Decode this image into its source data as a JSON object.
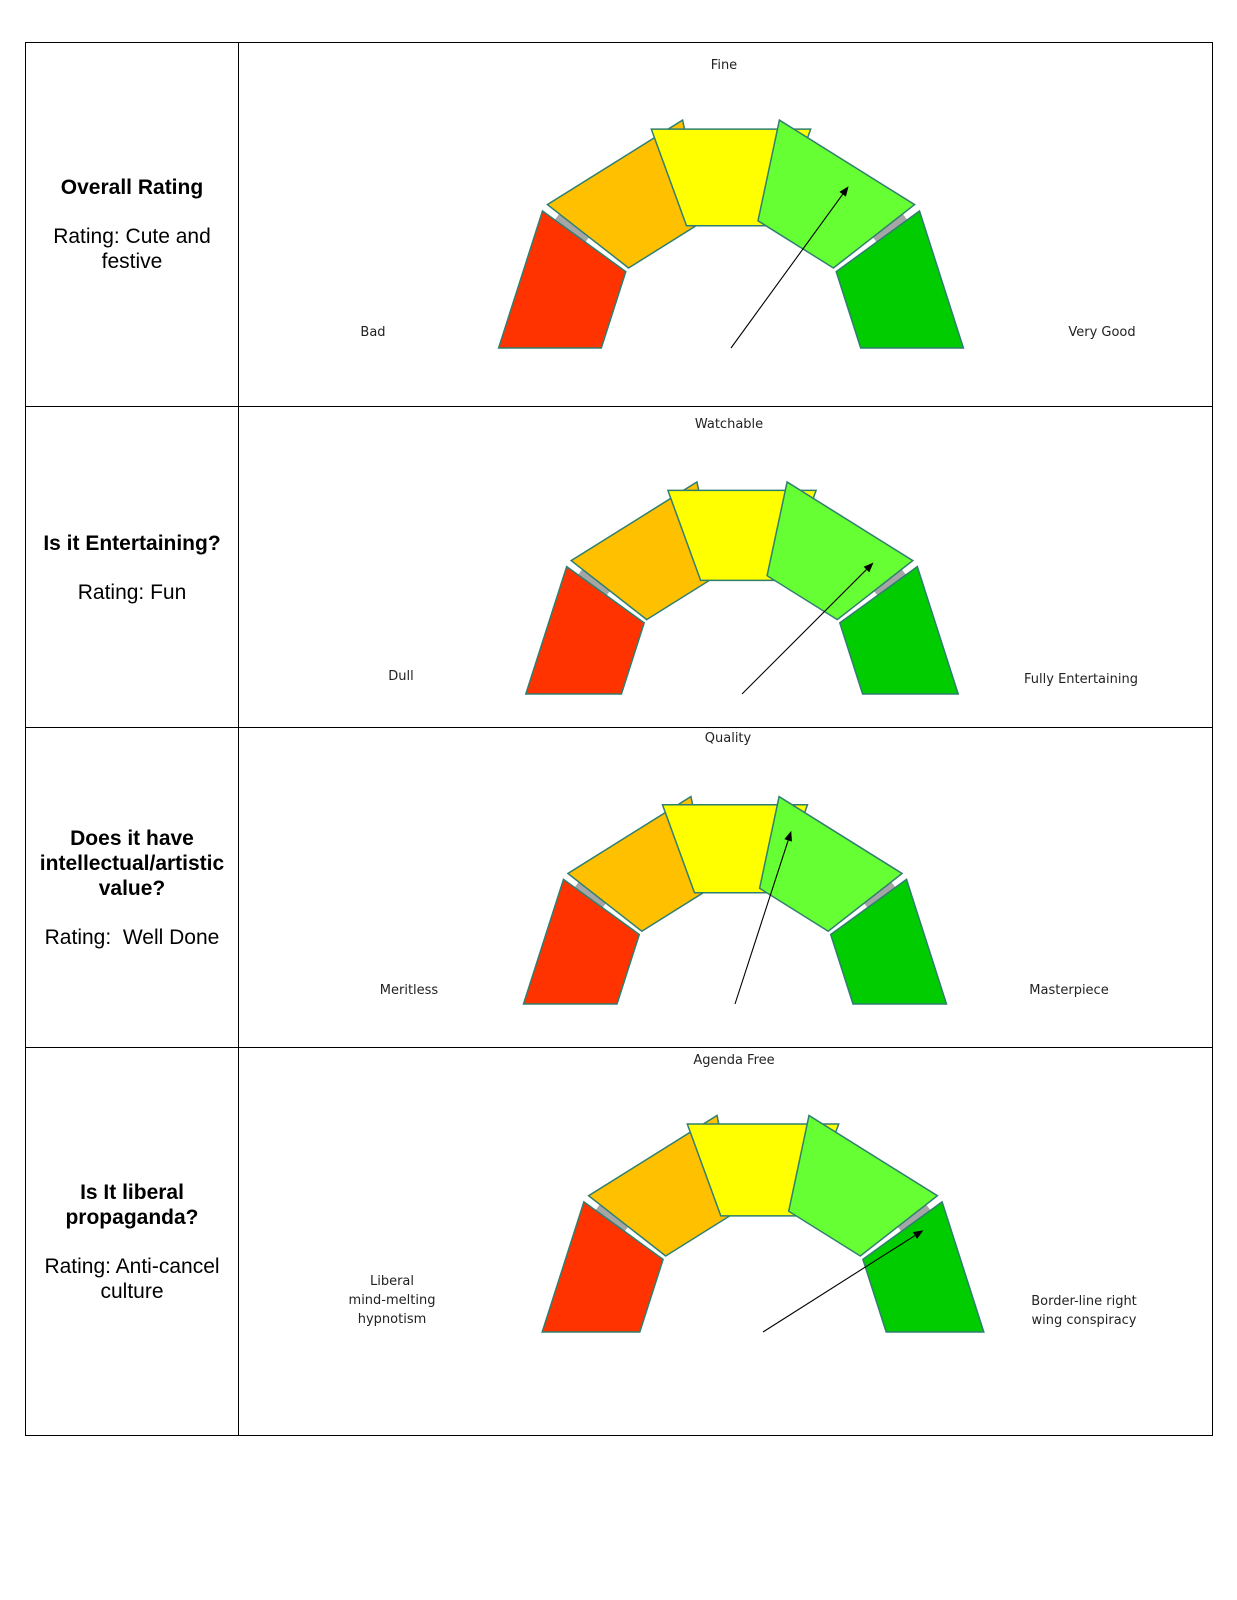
{
  "colors": {
    "segment_colors": [
      "#ff3300",
      "#ffc000",
      "#ffff00",
      "#66ff33",
      "#00cc00"
    ],
    "arc_band": "#a6a6a6",
    "outline": "#2f7f6f",
    "needle": "#000000"
  },
  "rows": [
    {
      "question": "Overall Rating",
      "rating": "Rating: Cute and\nfestive",
      "gauge": {
        "top_label": "Fine",
        "left_label": "Bad",
        "right_label": "Very Good",
        "needle_level": 0.7
      }
    },
    {
      "question": "Is it Entertaining?",
      "rating": "Rating: Fun",
      "gauge": {
        "top_label": "Watchable",
        "left_label": "Dull",
        "right_label": "Fully Entertaining",
        "needle_level": 0.75
      }
    },
    {
      "question": "Does it have intellectual/artistic value?",
      "rating": "Rating:  Well Done",
      "gauge": {
        "top_label": "Quality",
        "left_label": "Meritless",
        "right_label": "Masterpiece",
        "needle_level": 0.6
      }
    },
    {
      "question": "Is It liberal propaganda?",
      "rating": "Rating: Anti-cancel culture",
      "gauge": {
        "top_label": "Agenda Free",
        "left_label": "Liberal\nmind-melting\nhypnotism",
        "right_label": "Border-line right\nwing conspiracy",
        "needle_level": 0.82
      }
    }
  ]
}
